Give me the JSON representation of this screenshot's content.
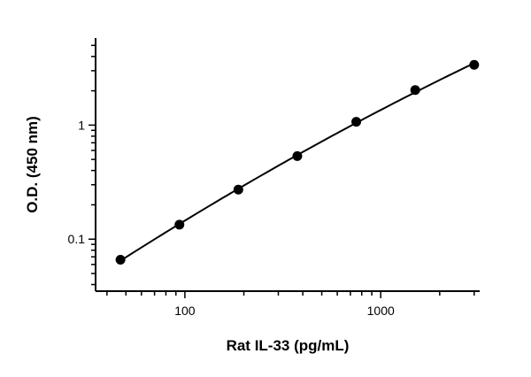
{
  "chart_data": {
    "type": "scatter",
    "xlabel": "Rat IL-33 (pg/mL)",
    "ylabel": "O.D. (450 nm)",
    "x_scale": "log",
    "y_scale": "log",
    "xlim": [
      35,
      3200
    ],
    "ylim": [
      0.035,
      5.8
    ],
    "x_ticks": [
      100,
      1000
    ],
    "x_tick_labels": [
      "100",
      "1000"
    ],
    "y_ticks": [
      0.1,
      1
    ],
    "y_tick_labels": [
      "0.1",
      "1"
    ],
    "grid": false,
    "fit_curve": true,
    "series": [
      {
        "x": [
          46.9,
          93.8,
          187.5,
          375,
          750,
          1500,
          3000
        ],
        "y": [
          0.066,
          0.134,
          0.272,
          0.535,
          1.07,
          2.03,
          3.38
        ]
      }
    ]
  }
}
